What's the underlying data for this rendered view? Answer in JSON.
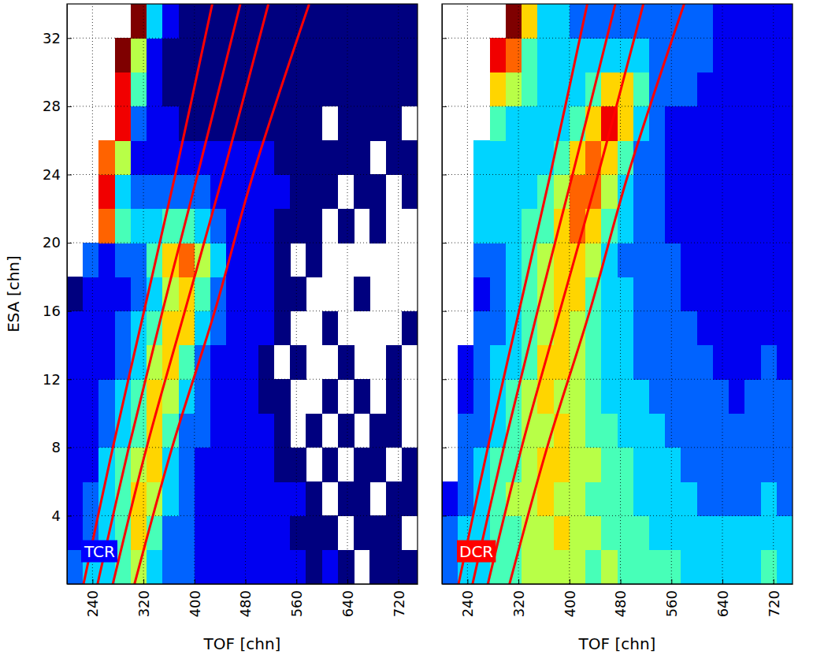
{
  "chart_data": [
    {
      "type": "heatmap",
      "title": "TCR",
      "xlabel": "TOF [chn]",
      "ylabel": "ESA [chn]",
      "xlim": [
        200,
        750
      ],
      "ylim": [
        0,
        34
      ],
      "xticks": [
        240,
        320,
        400,
        480,
        560,
        640,
        720
      ],
      "yticks": [
        4,
        8,
        12,
        16,
        20,
        24,
        28,
        32
      ],
      "grid": true,
      "zlim": [
        0,
        9
      ],
      "x_bins": [
        200,
        225,
        250,
        275,
        300,
        325,
        350,
        375,
        400,
        425,
        450,
        475,
        500,
        525,
        550,
        575,
        600,
        625,
        650,
        675,
        700,
        725,
        750
      ],
      "y_bins": [
        0,
        2,
        4,
        6,
        8,
        10,
        12,
        14,
        16,
        18,
        20,
        22,
        24,
        26,
        28,
        30,
        32,
        34
      ],
      "values": [
        [
          2,
          3,
          3,
          4,
          5,
          3,
          2,
          2,
          1,
          1,
          1,
          1,
          1,
          1,
          1,
          0,
          1,
          0,
          null,
          0,
          0,
          0
        ],
        [
          1,
          2,
          3,
          4,
          6,
          4,
          2,
          2,
          1,
          1,
          1,
          1,
          1,
          1,
          0,
          0,
          0,
          null,
          0,
          0,
          0,
          null
        ],
        [
          1,
          2,
          3,
          4,
          6,
          5,
          3,
          2,
          1,
          1,
          1,
          1,
          1,
          1,
          1,
          0,
          null,
          0,
          0,
          null,
          0,
          0
        ],
        [
          1,
          1,
          3,
          4,
          5,
          6,
          3,
          2,
          1,
          1,
          1,
          1,
          1,
          0,
          0,
          null,
          0,
          null,
          0,
          0,
          null,
          0
        ],
        [
          1,
          1,
          2,
          3,
          4,
          6,
          4,
          2,
          2,
          1,
          1,
          1,
          1,
          0,
          null,
          0,
          null,
          0,
          null,
          0,
          0,
          null
        ],
        [
          1,
          1,
          2,
          3,
          4,
          6,
          5,
          3,
          2,
          1,
          1,
          1,
          0,
          0,
          null,
          null,
          0,
          null,
          0,
          null,
          0,
          null
        ],
        [
          1,
          1,
          1,
          2,
          3,
          5,
          6,
          4,
          2,
          1,
          1,
          1,
          0,
          null,
          0,
          null,
          null,
          0,
          null,
          null,
          0,
          null
        ],
        [
          1,
          1,
          1,
          2,
          3,
          4,
          6,
          6,
          3,
          2,
          1,
          1,
          1,
          0,
          null,
          null,
          0,
          null,
          null,
          null,
          null,
          0
        ],
        [
          0,
          1,
          1,
          1,
          2,
          3,
          5,
          6,
          4,
          2,
          1,
          1,
          1,
          0,
          0,
          null,
          null,
          null,
          0,
          null,
          null,
          null
        ],
        [
          null,
          2,
          1,
          2,
          2,
          4,
          6,
          7,
          5,
          3,
          1,
          1,
          1,
          0,
          null,
          0,
          null,
          null,
          null,
          null,
          null,
          null
        ],
        [
          null,
          null,
          7,
          4,
          3,
          3,
          4,
          4,
          3,
          2,
          1,
          1,
          1,
          0,
          0,
          0,
          null,
          0,
          null,
          0,
          null,
          null
        ],
        [
          null,
          null,
          8,
          3,
          2,
          2,
          2,
          2,
          2,
          1,
          1,
          1,
          1,
          1,
          0,
          0,
          0,
          null,
          0,
          0,
          null,
          0
        ],
        [
          null,
          null,
          7,
          5,
          1,
          1,
          1,
          1,
          1,
          1,
          1,
          1,
          1,
          0,
          0,
          0,
          0,
          0,
          0,
          null,
          0,
          0
        ],
        [
          null,
          null,
          null,
          8,
          2,
          1,
          1,
          0,
          0,
          0,
          0,
          0,
          0,
          0,
          0,
          0,
          null,
          0,
          0,
          0,
          0,
          null
        ],
        [
          null,
          null,
          null,
          8,
          4,
          1,
          0,
          0,
          0,
          0,
          0,
          0,
          0,
          0,
          0,
          0,
          0,
          0,
          0,
          0,
          0,
          0
        ],
        [
          null,
          null,
          null,
          9,
          5,
          1,
          0,
          0,
          0,
          0,
          0,
          0,
          0,
          0,
          0,
          0,
          0,
          0,
          0,
          0,
          0,
          0
        ],
        [
          null,
          null,
          null,
          null,
          9,
          3,
          1,
          0,
          0,
          0,
          0,
          0,
          0,
          0,
          0,
          0,
          0,
          0,
          0,
          0,
          0,
          0
        ]
      ],
      "series": [
        {
          "type": "line",
          "color": "#ff0000",
          "x": [
            226,
            272,
            321,
            370,
            428
          ],
          "y": [
            0,
            8,
            16,
            24,
            34
          ]
        },
        {
          "type": "line",
          "color": "#ff0000",
          "x": [
            248,
            297,
            350,
            405,
            472
          ],
          "y": [
            0,
            8,
            16,
            24,
            34
          ]
        },
        {
          "type": "line",
          "color": "#ff0000",
          "x": [
            272,
            325,
            385,
            445,
            516
          ],
          "y": [
            0,
            8,
            16,
            24,
            34
          ]
        },
        {
          "type": "line",
          "color": "#ff0000",
          "x": [
            306,
            365,
            432,
            492,
            580
          ],
          "y": [
            0,
            8,
            16,
            24,
            34
          ]
        }
      ]
    },
    {
      "type": "heatmap",
      "title": "DCR",
      "xlabel": "TOF [chn]",
      "xlim": [
        200,
        750
      ],
      "ylim": [
        0,
        34
      ],
      "xticks": [
        240,
        320,
        400,
        480,
        560,
        640,
        720
      ],
      "yticks": [
        4,
        8,
        12,
        16,
        20,
        24,
        28,
        32
      ],
      "tick_labels": "x",
      "grid": true,
      "zlim": [
        0,
        9
      ],
      "x_bins": [
        200,
        225,
        250,
        275,
        300,
        325,
        350,
        375,
        400,
        425,
        450,
        475,
        500,
        525,
        550,
        575,
        600,
        625,
        650,
        675,
        700,
        725,
        750
      ],
      "y_bins": [
        0,
        2,
        4,
        6,
        8,
        10,
        12,
        14,
        16,
        18,
        20,
        22,
        24,
        26,
        28,
        30,
        32,
        34
      ],
      "values": [
        [
          2,
          3,
          3,
          4,
          4,
          5,
          5,
          5,
          5,
          4,
          5,
          4,
          4,
          4,
          4,
          3,
          3,
          3,
          3,
          3,
          4,
          3
        ],
        [
          2,
          3,
          3,
          4,
          4,
          5,
          5,
          6,
          5,
          5,
          4,
          4,
          4,
          3,
          3,
          3,
          3,
          3,
          3,
          3,
          3,
          3
        ],
        [
          1,
          2,
          3,
          4,
          5,
          5,
          6,
          5,
          5,
          4,
          4,
          4,
          3,
          3,
          3,
          3,
          2,
          2,
          2,
          2,
          3,
          2
        ],
        [
          null,
          2,
          3,
          4,
          4,
          5,
          6,
          6,
          5,
          5,
          4,
          4,
          3,
          3,
          3,
          2,
          2,
          2,
          2,
          2,
          2,
          2
        ],
        [
          null,
          2,
          2,
          3,
          4,
          5,
          5,
          6,
          5,
          4,
          4,
          3,
          3,
          3,
          2,
          2,
          2,
          2,
          2,
          2,
          2,
          2
        ],
        [
          null,
          1,
          2,
          3,
          4,
          5,
          6,
          5,
          5,
          4,
          3,
          3,
          3,
          2,
          2,
          2,
          2,
          2,
          1,
          2,
          2,
          2
        ],
        [
          null,
          1,
          2,
          3,
          3,
          4,
          6,
          6,
          5,
          4,
          3,
          3,
          2,
          2,
          2,
          2,
          2,
          1,
          1,
          1,
          2,
          1
        ],
        [
          null,
          null,
          2,
          2,
          3,
          4,
          5,
          6,
          5,
          4,
          3,
          3,
          2,
          2,
          2,
          2,
          1,
          1,
          1,
          1,
          1,
          1
        ],
        [
          null,
          null,
          1,
          2,
          3,
          4,
          5,
          6,
          6,
          4,
          3,
          3,
          2,
          2,
          2,
          1,
          1,
          1,
          1,
          1,
          1,
          1
        ],
        [
          null,
          null,
          2,
          2,
          3,
          4,
          5,
          6,
          6,
          5,
          3,
          2,
          2,
          2,
          2,
          1,
          1,
          1,
          1,
          1,
          1,
          1
        ],
        [
          null,
          null,
          3,
          3,
          3,
          4,
          4,
          6,
          7,
          6,
          4,
          3,
          2,
          2,
          1,
          1,
          1,
          1,
          1,
          1,
          1,
          1
        ],
        [
          null,
          null,
          3,
          3,
          3,
          3,
          4,
          5,
          7,
          7,
          5,
          3,
          2,
          2,
          1,
          1,
          1,
          1,
          1,
          1,
          1,
          1
        ],
        [
          null,
          null,
          3,
          3,
          3,
          3,
          3,
          4,
          6,
          7,
          6,
          4,
          2,
          2,
          1,
          1,
          1,
          1,
          1,
          1,
          1,
          1
        ],
        [
          null,
          null,
          null,
          4,
          3,
          3,
          3,
          3,
          4,
          6,
          8,
          6,
          3,
          2,
          1,
          1,
          1,
          1,
          1,
          1,
          1,
          1
        ],
        [
          null,
          null,
          null,
          6,
          5,
          4,
          3,
          3,
          3,
          4,
          6,
          6,
          4,
          2,
          2,
          2,
          1,
          1,
          1,
          1,
          1,
          1
        ],
        [
          null,
          null,
          null,
          8,
          7,
          4,
          3,
          3,
          3,
          3,
          3,
          3,
          3,
          2,
          2,
          2,
          2,
          1,
          1,
          1,
          1,
          1
        ],
        [
          null,
          null,
          null,
          null,
          9,
          6,
          3,
          3,
          2,
          2,
          2,
          2,
          2,
          2,
          2,
          2,
          2,
          1,
          1,
          1,
          1,
          1
        ]
      ],
      "series": [
        {
          "type": "line",
          "color": "#ff0000",
          "x": [
            226,
            272,
            321,
            370,
            428
          ],
          "y": [
            0,
            8,
            16,
            24,
            34
          ]
        },
        {
          "type": "line",
          "color": "#ff0000",
          "x": [
            248,
            297,
            350,
            405,
            472
          ],
          "y": [
            0,
            8,
            16,
            24,
            34
          ]
        },
        {
          "type": "line",
          "color": "#ff0000",
          "x": [
            272,
            325,
            385,
            445,
            516
          ],
          "y": [
            0,
            8,
            16,
            24,
            34
          ]
        },
        {
          "type": "line",
          "color": "#ff0000",
          "x": [
            306,
            365,
            432,
            492,
            580
          ],
          "y": [
            0,
            8,
            16,
            24,
            34
          ]
        }
      ]
    }
  ]
}
